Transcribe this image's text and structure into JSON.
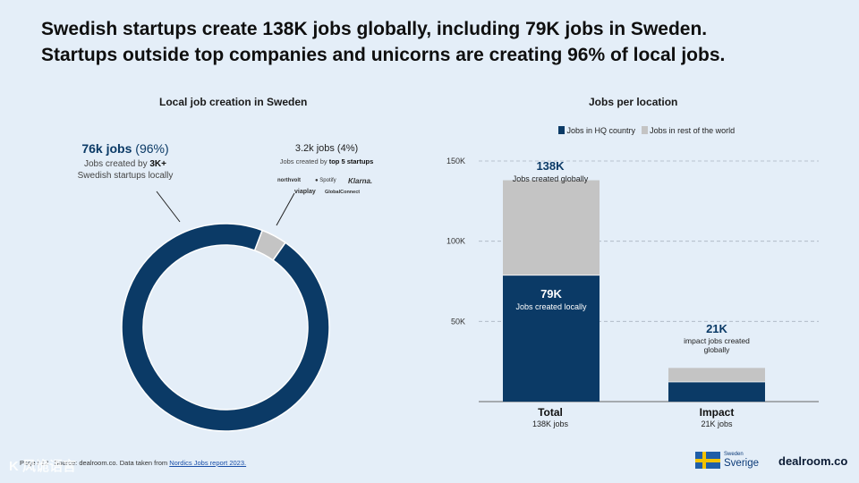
{
  "title": {
    "line1": "Swedish startups create 138K jobs globally, including 79K jobs in Sweden.",
    "line2": "Startups outside top companies and unicorns are creating 96% of local jobs."
  },
  "left_panel": {
    "title": "Local job creation in Sweden",
    "big": {
      "value": "76k jobs",
      "pct": "(96%)",
      "desc_prefix": "Jobs created by ",
      "desc_bold": "3K+",
      "desc_line2": "Swedish startups locally"
    },
    "small": {
      "value": "3.2k jobs (4%)",
      "desc_prefix": "Jobs created by ",
      "desc_bold": "top 5 startups"
    },
    "logos": [
      "northvolt",
      "Spotify",
      "Klarna.",
      "viaplay",
      "GlobalConnect"
    ]
  },
  "right_panel": {
    "title": "Jobs per location",
    "legend": [
      "Jobs in HQ country",
      "Jobs in rest of the world"
    ],
    "bars": [
      {
        "label": "Total",
        "sublabel": "138K jobs",
        "top_value": "138K",
        "top_desc": "Jobs created globally",
        "inner_value": "79K",
        "inner_desc": "Jobs created locally"
      },
      {
        "label": "Impact",
        "sublabel": "21K jobs",
        "top_value": "21K",
        "top_desc_line1": "impact jobs created",
        "top_desc_line2": "globally"
      }
    ]
  },
  "footer": {
    "page": "Page / 12",
    "source_prefix": "Source:",
    "source_text": "dealroom.co. Data taken from",
    "source_link": "Nordics Jobs report 2023."
  },
  "brands": {
    "sverige_small": "Sweden",
    "sverige_big": "Sverige",
    "dealroom": "dealroom.co"
  },
  "watermark": "K 风诡语言",
  "chart_data": [
    {
      "type": "pie",
      "title": "Local job creation in Sweden",
      "labels": [
        "Jobs created by 3K+ Swedish startups locally",
        "Jobs created by top 5 startups"
      ],
      "values": [
        76,
        3.2
      ],
      "units": "k jobs",
      "percent": [
        96,
        4
      ],
      "colors": [
        "#0b3a66",
        "#c4c4c4"
      ]
    },
    {
      "type": "bar",
      "stacked": true,
      "title": "Jobs per location",
      "categories": [
        "Total",
        "Impact"
      ],
      "series": [
        {
          "name": "Jobs in HQ country",
          "values": [
            79,
            12.5
          ],
          "color": "#0b3a66"
        },
        {
          "name": "Jobs in rest of the world",
          "values": [
            59,
            8.5
          ],
          "color": "#c4c4c4"
        }
      ],
      "ylim": [
        0,
        150
      ],
      "yticks": [
        50,
        100,
        150
      ],
      "ytick_labels": [
        "50K",
        "100K",
        "150K"
      ],
      "grid": true,
      "legend": "top"
    }
  ]
}
